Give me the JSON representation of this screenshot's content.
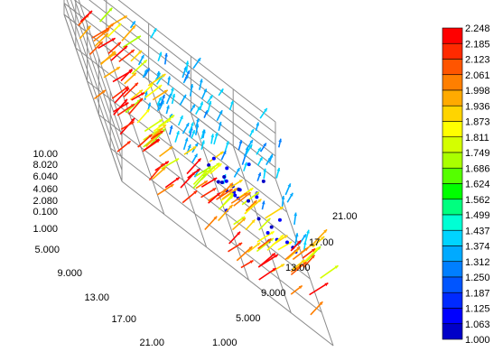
{
  "chart_data": {
    "type": "3d-vector-field",
    "title": "",
    "axes": {
      "x": {
        "ticks": [
          "1.000",
          "5.000",
          "9.000",
          "13.00",
          "17.00",
          "21.00"
        ],
        "range": [
          1,
          21
        ]
      },
      "y": {
        "ticks": [
          "1.000",
          "5.000",
          "9.000",
          "13.00",
          "17.00",
          "21.00"
        ],
        "range": [
          1,
          21
        ]
      },
      "z": {
        "ticks": [
          "0.100",
          "2.080",
          "4.060",
          "6.040",
          "8.020",
          "10.00"
        ],
        "range": [
          0.1,
          10.0
        ]
      }
    },
    "grid": true,
    "colorbar": {
      "placement": "right",
      "range": [
        1.0,
        2.248
      ],
      "labels": [
        "2.248",
        "2.185",
        "2.123",
        "2.061",
        "1.998",
        "1.936",
        "1.873",
        "1.811",
        "1.749",
        "1.686",
        "1.624",
        "1.562",
        "1.499",
        "1.437",
        "1.374",
        "1.312",
        "1.250",
        "1.187",
        "1.125",
        "1.063",
        "1.000"
      ],
      "colors": [
        "#ff0000",
        "#ff2a00",
        "#ff5500",
        "#ff7f00",
        "#ffaa00",
        "#ffd400",
        "#ffff00",
        "#d4ff00",
        "#aaff00",
        "#55ff00",
        "#00ff00",
        "#00ff7f",
        "#00ffd4",
        "#00d4ff",
        "#00aaff",
        "#007fff",
        "#0055ff",
        "#002aff",
        "#0000ff",
        "#0000c8"
      ]
    },
    "field_description": "Vectors colored by magnitude: low-magnitude (blue) vectors cluster near x,y≈13–17 at upper levels, high-magnitude (red) vectors along the x≈1 back wall and y≈21 right wall, cyan/teal vectors over the front region."
  }
}
